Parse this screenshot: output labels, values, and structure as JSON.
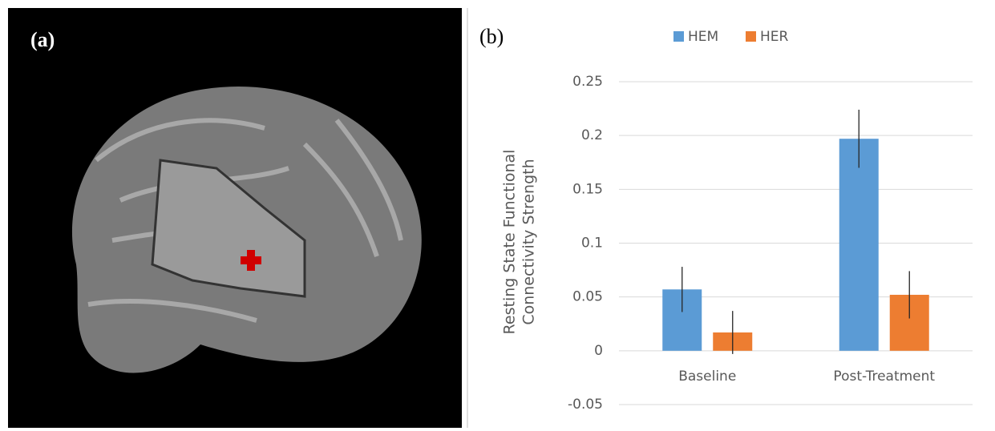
{
  "figure": {
    "panel_a_label": "(a)"
  },
  "chart_data": {
    "type": "bar",
    "panel_label": "(b)",
    "ylabel": [
      "Resting State Functional",
      "Connectivity Strength"
    ],
    "categories": [
      "Baseline",
      "Post-Treatment"
    ],
    "series": [
      {
        "name": "HEM",
        "color": "#5b9bd5",
        "values": [
          0.057,
          0.197
        ],
        "errors": [
          0.021,
          0.027
        ]
      },
      {
        "name": "HER",
        "color": "#ed7d31",
        "values": [
          0.017,
          0.052
        ],
        "errors": [
          0.02,
          0.022
        ]
      }
    ],
    "ylim": [
      -0.05,
      0.25
    ],
    "yticks": [
      -0.05,
      0,
      0.05,
      0.1,
      0.15,
      0.2,
      0.25
    ],
    "grid": true,
    "legend": "top"
  }
}
